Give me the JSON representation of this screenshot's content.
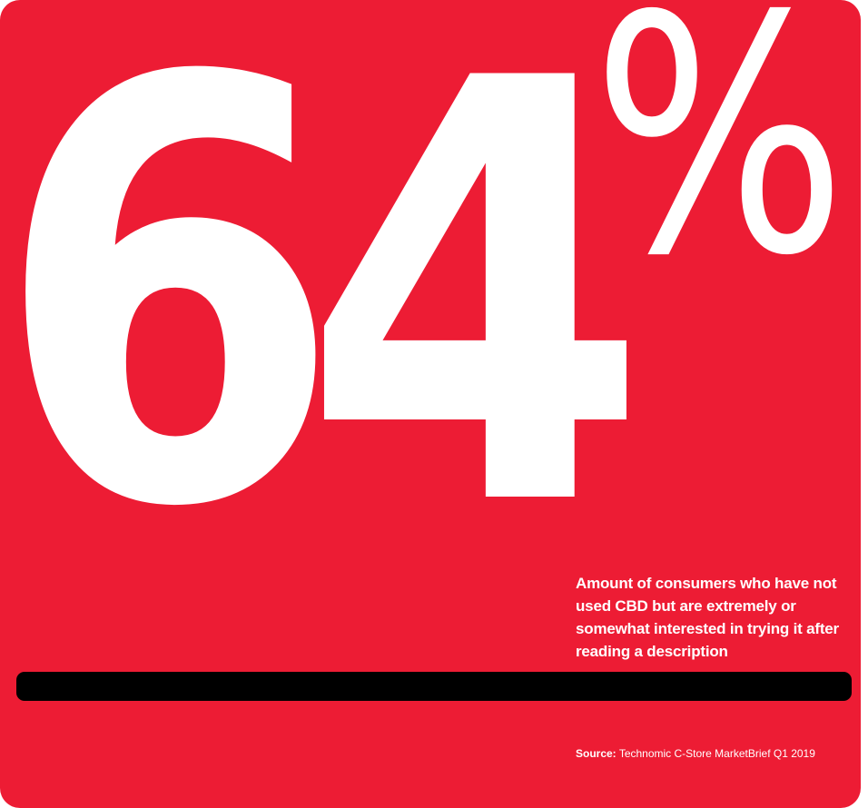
{
  "stat": {
    "number": "64",
    "symbol": "%"
  },
  "description": "Amount of consumers who have not used CBD but are extremely or somewhat interested in trying it after reading a description",
  "source": {
    "label": "Source:",
    "text": "Technomic C-Store MarketBrief Q1 2019"
  },
  "colors": {
    "background": "#ed1c34",
    "text": "#ffffff",
    "bar": "#000000"
  }
}
